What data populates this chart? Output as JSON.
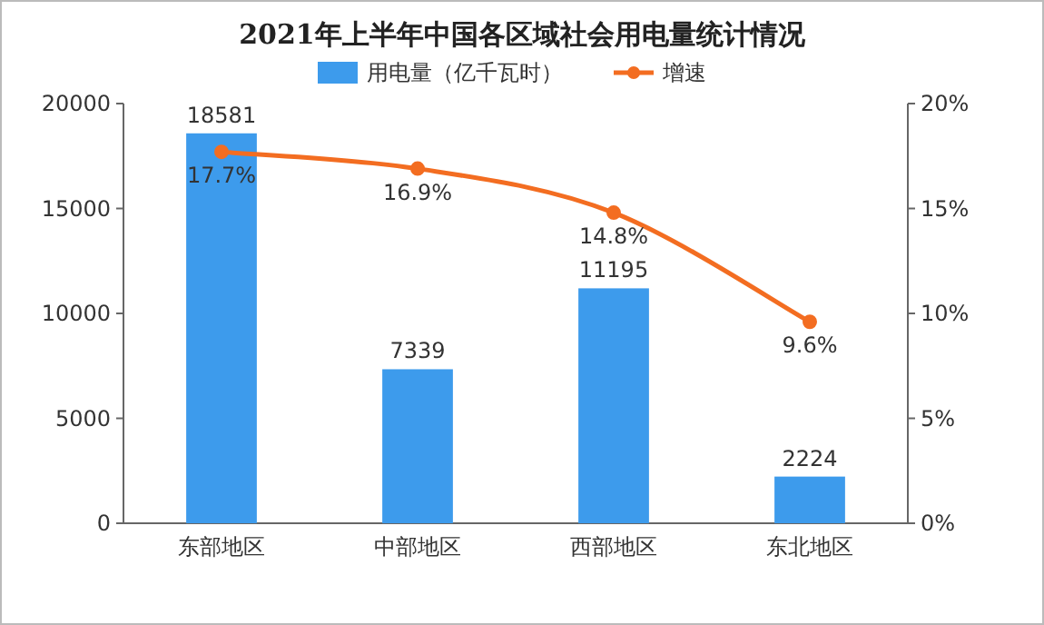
{
  "chart_data": {
    "type": "bar",
    "title": "2021年上半年中国各区域社会用电量统计情况",
    "categories": [
      "东部地区",
      "中部地区",
      "西部地区",
      "东北地区"
    ],
    "series": [
      {
        "name": "用电量（亿千瓦时）",
        "color": "#3d9bec",
        "values": [
          18581,
          7339,
          11195,
          2224
        ],
        "value_labels": [
          "18581",
          "7339",
          "11195",
          "2224"
        ]
      },
      {
        "name": "增速",
        "type": "line",
        "axis": "y2",
        "color": "#f36d21",
        "values": [
          17.7,
          16.9,
          14.8,
          9.6
        ],
        "value_labels": [
          "17.7%",
          "16.9%",
          "14.8%",
          "9.6%"
        ]
      }
    ],
    "ylim": [
      0,
      20000
    ],
    "yticks": [
      0,
      5000,
      10000,
      15000,
      20000
    ],
    "y2lim": [
      0,
      20
    ],
    "y2ticks": [
      {
        "value": 0,
        "label": "0%"
      },
      {
        "value": 5,
        "label": "5%"
      },
      {
        "value": 10,
        "label": "10%"
      },
      {
        "value": 15,
        "label": "15%"
      },
      {
        "value": 20,
        "label": "20%"
      }
    ],
    "legend": "top",
    "marker": "circle"
  }
}
